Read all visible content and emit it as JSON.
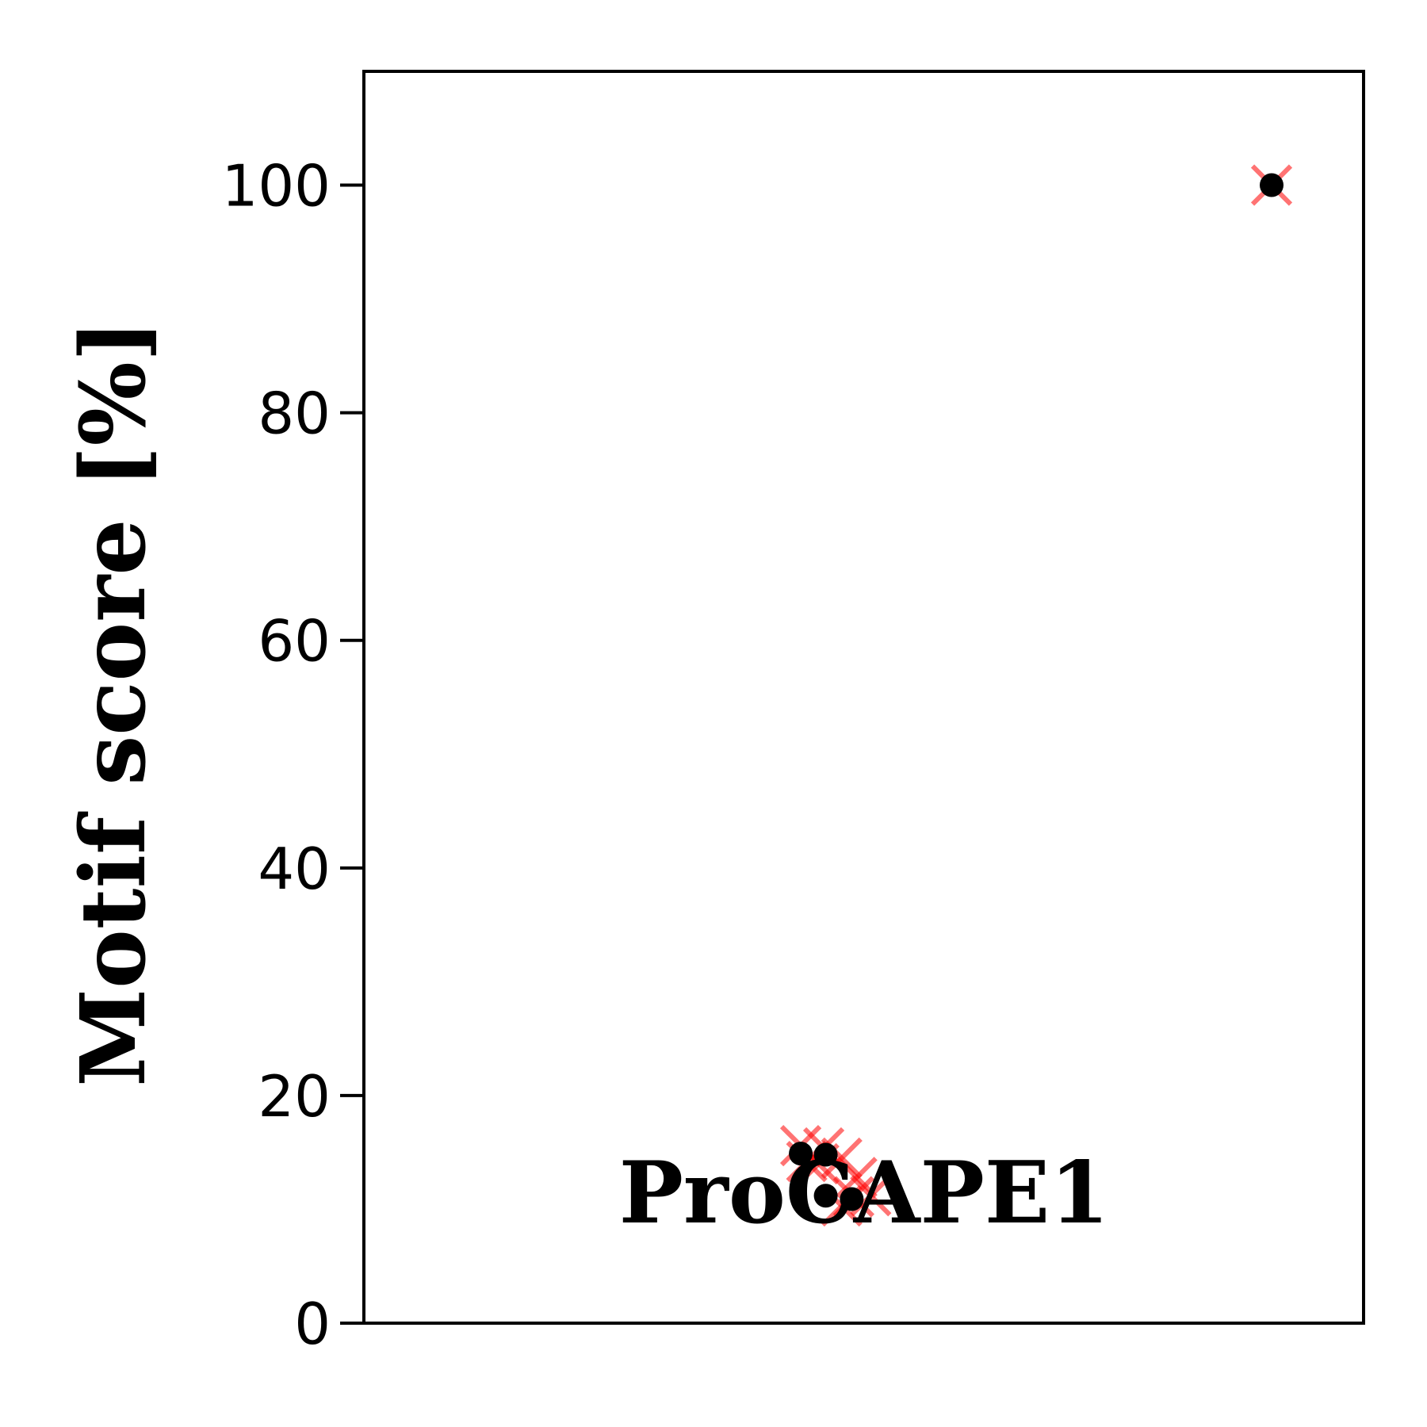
{
  "chart_data": {
    "type": "scatter",
    "title": "",
    "xlabel": "",
    "ylabel": "Motif score [%]",
    "ylim": [
      0,
      110
    ],
    "yticks": [
      0,
      20,
      40,
      60,
      80,
      100
    ],
    "ytick_labels": [
      "0",
      "20",
      "40",
      "60",
      "80",
      "100"
    ],
    "grid": false,
    "legend": "none",
    "annotation": "ProCAPE1",
    "series": [
      {
        "marker": "x",
        "color": "#ff0000",
        "points": [
          {
            "x": 0.437,
            "y": 15.6
          },
          {
            "x": 0.46,
            "y": 15.4
          },
          {
            "x": 0.443,
            "y": 14.2
          },
          {
            "x": 0.455,
            "y": 14.0
          },
          {
            "x": 0.478,
            "y": 14.5
          },
          {
            "x": 0.49,
            "y": 11.1
          },
          {
            "x": 0.478,
            "y": 10.3
          },
          {
            "x": 0.507,
            "y": 11.2
          },
          {
            "x": 0.493,
            "y": 12.8
          },
          {
            "x": 0.908,
            "y": 100.0
          }
        ]
      },
      {
        "marker": "o",
        "color": "#000000",
        "points": [
          {
            "x": 0.437,
            "y": 14.9
          },
          {
            "x": 0.462,
            "y": 14.8
          },
          {
            "x": 0.462,
            "y": 11.2
          },
          {
            "x": 0.488,
            "y": 10.9
          },
          {
            "x": 0.908,
            "y": 100.0
          }
        ]
      }
    ]
  }
}
